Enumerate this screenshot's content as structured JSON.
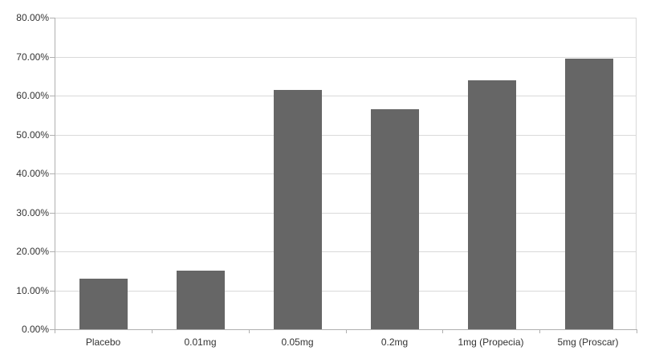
{
  "chart_data": {
    "type": "bar",
    "title": "",
    "xlabel": "",
    "ylabel": "",
    "categories": [
      "Placebo",
      "0.01mg",
      "0.05mg",
      "0.2mg",
      "1mg (Propecia)",
      "5mg (Proscar)"
    ],
    "values": [
      13,
      15,
      61.5,
      56.5,
      64,
      69.5
    ],
    "ylim": [
      0,
      80
    ],
    "ytick_step": 10,
    "ytick_labels": [
      "0.00%",
      "10.00%",
      "20.00%",
      "30.00%",
      "40.00%",
      "50.00%",
      "60.00%",
      "70.00%",
      "80.00%"
    ],
    "grid": true,
    "legend": "none",
    "colors": {
      "bar": "#666666",
      "gridline": "#d9d9d9",
      "axis": "#b0b0b0",
      "text": "#333333",
      "background": "#ffffff"
    }
  }
}
